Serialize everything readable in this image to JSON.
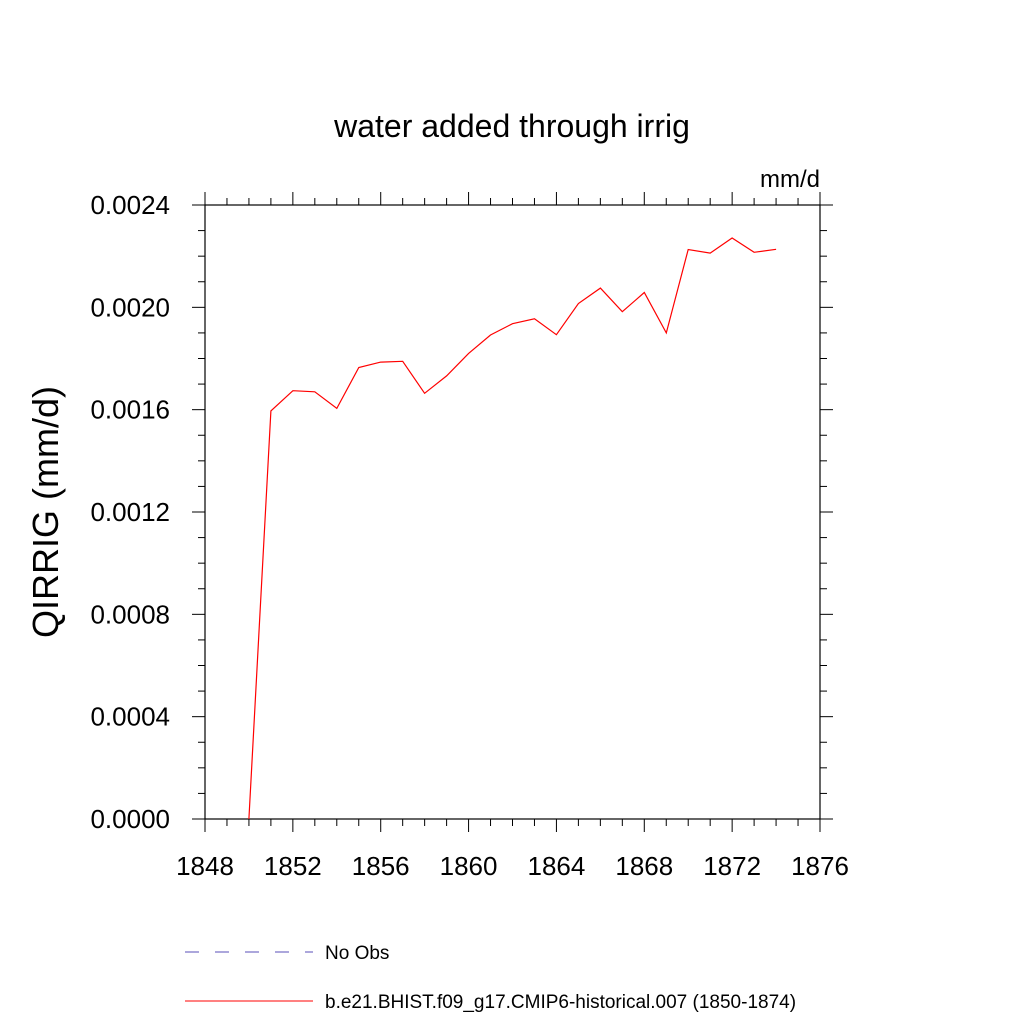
{
  "chart_data": {
    "type": "line",
    "title": "water added through irrig",
    "units_label": "mm/d",
    "ylabel": "QIRRIG  (mm/d)",
    "xlabel": "",
    "xlim": [
      1848,
      1876
    ],
    "ylim": [
      0.0,
      0.0024
    ],
    "x_ticks": [
      "1848",
      "1852",
      "1856",
      "1860",
      "1864",
      "1868",
      "1872",
      "1876"
    ],
    "x_tick_values": [
      1848,
      1852,
      1856,
      1860,
      1864,
      1868,
      1872,
      1876
    ],
    "y_ticks": [
      "0.0000",
      "0.0004",
      "0.0008",
      "0.0012",
      "0.0016",
      "0.0020",
      "0.0024"
    ],
    "y_tick_values": [
      0.0,
      0.0004,
      0.0008,
      0.0012,
      0.0016,
      0.002,
      0.0024
    ],
    "x_minor_step": 1,
    "y_minor_step": 0.0001,
    "grid": false,
    "legend_position": "bottom",
    "series": [
      {
        "name": "No Obs",
        "color": "#5a4fb8",
        "style": "dashed",
        "x": [],
        "values": []
      },
      {
        "name": "b.e21.BHIST.f09_g17.CMIP6-historical.007 (1850-1874)",
        "color": "#ff0000",
        "style": "solid",
        "x": [
          1850,
          1851,
          1852,
          1853,
          1854,
          1855,
          1856,
          1857,
          1858,
          1859,
          1860,
          1861,
          1862,
          1863,
          1864,
          1865,
          1866,
          1867,
          1868,
          1869,
          1870,
          1871,
          1872,
          1873,
          1874
        ],
        "values": [
          0.0,
          0.001595,
          0.001674,
          0.00167,
          0.001605,
          0.001765,
          0.001786,
          0.001789,
          0.001664,
          0.001732,
          0.00182,
          0.001892,
          0.001936,
          0.001955,
          0.001893,
          0.002015,
          0.002075,
          0.001983,
          0.002058,
          0.0019,
          0.002226,
          0.002212,
          0.002271,
          0.002215,
          0.002227
        ]
      }
    ]
  }
}
